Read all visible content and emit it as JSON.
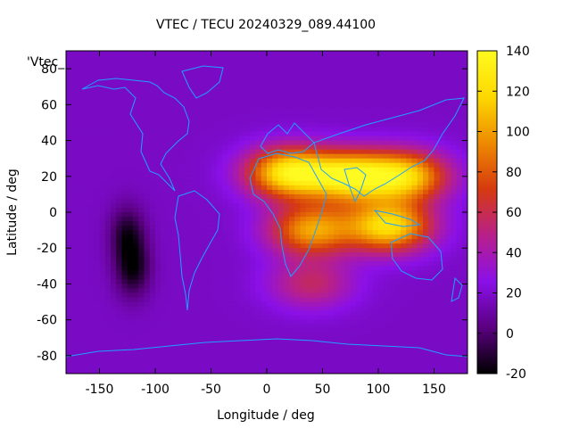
{
  "chart_data": {
    "type": "heatmap",
    "title": "VTEC / TECU 20240329_089.44100",
    "xlabel": "Longitude / deg",
    "ylabel": "Latitude / deg",
    "xlim": [
      -180,
      180
    ],
    "ylim": [
      -90,
      90
    ],
    "xticks": [
      -150,
      -100,
      -50,
      0,
      50,
      100,
      150
    ],
    "yticks": [
      -80,
      -60,
      -40,
      -20,
      0,
      20,
      40,
      60,
      80
    ],
    "colorbar": {
      "range": [
        -20,
        140
      ],
      "ticks": [
        -20,
        0,
        20,
        40,
        60,
        80,
        100,
        120,
        140
      ],
      "palette": [
        "#000000",
        "#5a0080",
        "#8a10e8",
        "#b8208a",
        "#d63a10",
        "#ee8a00",
        "#fdd800",
        "#fffb20"
      ]
    },
    "key_label": "'Vtec_",
    "coastline_color": "#1fa0ff",
    "grid": false,
    "features": {
      "background_level": 18,
      "lows": [
        {
          "lon": -125,
          "lat": -12,
          "value": -12
        },
        {
          "lon": -120,
          "lat": -32,
          "value": -15
        }
      ],
      "highs": [
        {
          "lon": 20,
          "lat": 22,
          "value": 128
        },
        {
          "lon": 75,
          "lat": 20,
          "value": 120
        },
        {
          "lon": 125,
          "lat": 20,
          "value": 112
        },
        {
          "lon": 40,
          "lat": -10,
          "value": 100
        },
        {
          "lon": 110,
          "lat": -8,
          "value": 120
        },
        {
          "lon": 40,
          "lat": -40,
          "value": 55
        }
      ]
    }
  }
}
